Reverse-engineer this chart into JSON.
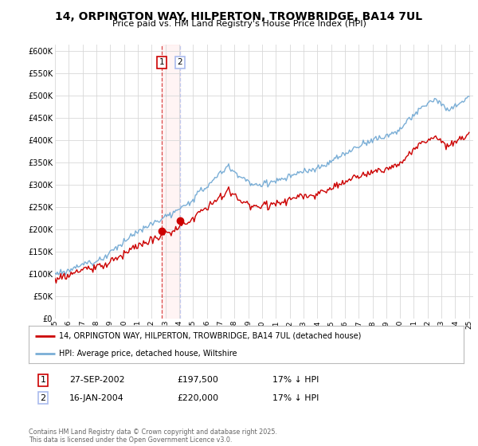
{
  "title": "14, ORPINGTON WAY, HILPERTON, TROWBRIDGE, BA14 7UL",
  "subtitle": "Price paid vs. HM Land Registry's House Price Index (HPI)",
  "legend_line1": "14, ORPINGTON WAY, HILPERTON, TROWBRIDGE, BA14 7UL (detached house)",
  "legend_line2": "HPI: Average price, detached house, Wiltshire",
  "transaction1_date": "27-SEP-2002",
  "transaction1_price": "£197,500",
  "transaction1_hpi": "17% ↓ HPI",
  "transaction2_date": "16-JAN-2004",
  "transaction2_price": "£220,000",
  "transaction2_hpi": "17% ↓ HPI",
  "footer": "Contains HM Land Registry data © Crown copyright and database right 2025.\nThis data is licensed under the Open Government Licence v3.0.",
  "line_color_red": "#cc0000",
  "line_color_blue": "#7aaed6",
  "vline_color": "#cc0000",
  "background_color": "#ffffff",
  "grid_color": "#d8d8d8",
  "transaction1_year": 2002.74,
  "transaction2_year": 2004.04,
  "transaction1_value": 197500,
  "transaction2_value": 220000
}
